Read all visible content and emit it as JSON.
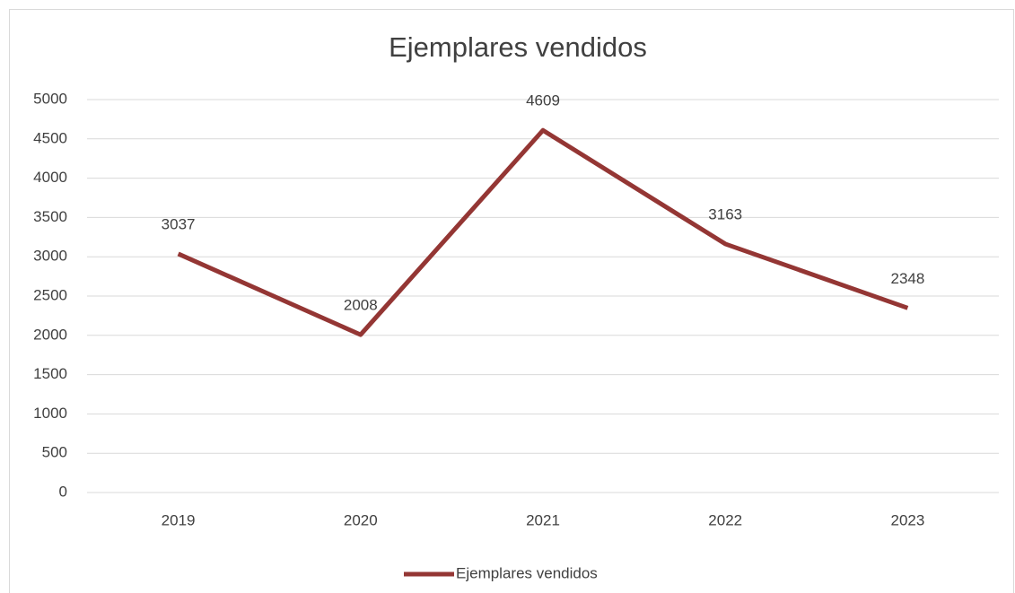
{
  "chart_data": {
    "type": "line",
    "title": "Ejemplares vendidos",
    "categories": [
      "2019",
      "2020",
      "2021",
      "2022",
      "2023"
    ],
    "series": [
      {
        "name": "Ejemplares vendidos",
        "color": "#943634",
        "values": [
          3037,
          2008,
          4609,
          3163,
          2348
        ]
      }
    ],
    "ylim": [
      0,
      5000
    ],
    "yticks": [
      0,
      500,
      1000,
      1500,
      2000,
      2500,
      3000,
      3500,
      4000,
      4500,
      5000
    ],
    "grid": true,
    "legend": "bottom"
  }
}
